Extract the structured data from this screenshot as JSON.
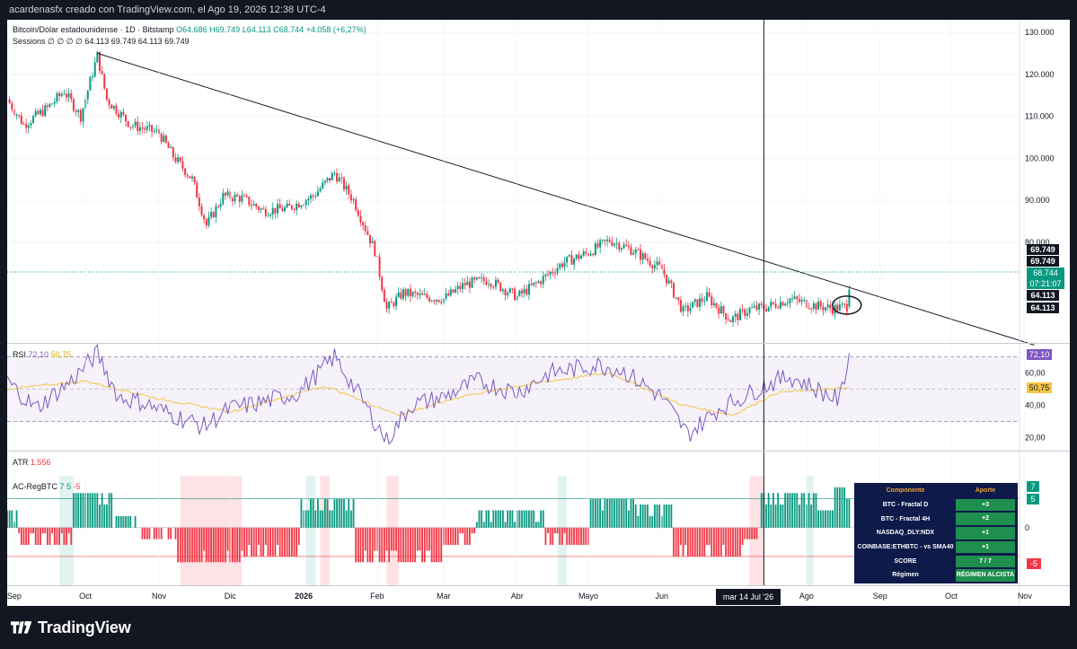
{
  "header": {
    "caption": "acardenasfx creado con TradingView.com, el Ago 19, 2026 12:38 UTC-4"
  },
  "main_pane": {
    "symbol_title": "Bitcoin/Dólar estadounidense · 1D · Bitstamp",
    "ohlc": {
      "open": "O64.686",
      "high": "H69.749",
      "low": "L64.113",
      "close": "C68.744",
      "change": "+4.058 (+6,27%)"
    },
    "sessions_legend": "Sessions  ∅  ∅  ∅  ∅  64.113  69.749  64.113  69.749",
    "price_ticks": [
      "130.000",
      "120.000",
      "110.000",
      "100.000",
      "90.000",
      "80.000"
    ],
    "price_labels": {
      "high_1": "69.749",
      "high_2": "69.749",
      "last": "68.744",
      "countdown": "07:21:07",
      "low_1": "64.113",
      "low_2": "64.113"
    }
  },
  "rsi_pane": {
    "legend_name": "RSI",
    "legend_rsi": "72,10",
    "legend_ma": "50,75",
    "ticks": [
      "60,00",
      "40,00",
      "20,00"
    ],
    "label_rsi": "72,10",
    "label_ma": "50,75"
  },
  "atr_pane": {
    "legend_name": "ATR",
    "legend_value": "1.556"
  },
  "reg_pane": {
    "legend_name": "AC-RegBTC",
    "legend_v1": "7",
    "legend_v2": "5",
    "legend_v3": "-5",
    "ticks": [
      "0"
    ],
    "label_7": "7",
    "label_5": "5",
    "label_m5": "-5",
    "table": {
      "header_col1": "Componente",
      "header_col2": "Aporte",
      "rows": [
        {
          "name": "BTC - Fractal D",
          "value": "+3"
        },
        {
          "name": "BTC - Fractal 4H",
          "value": "+2"
        },
        {
          "name": "NASDAQ_DLY:NDX",
          "value": "+1"
        },
        {
          "name": "COINBASE:ETHBTC - vs SMA40",
          "value": "+1"
        },
        {
          "name": "SCORE",
          "value": "7 / 7"
        },
        {
          "name": "Régimen",
          "value": "RÉGIMEN ALCISTA"
        }
      ]
    }
  },
  "time_axis": {
    "labels": [
      "Sep",
      "Oct",
      "Nov",
      "Dic",
      "2026",
      "Feb",
      "Mar",
      "Abr",
      "Mayo",
      "Jun",
      "Ago",
      "Sep",
      "Oct",
      "Nov"
    ],
    "crosshair_label": "mar 14 Jul '26"
  },
  "footer": {
    "brand": "TradingView"
  },
  "colors": {
    "up": "#089981",
    "down": "#f23645",
    "rsi_line": "#7e57c2",
    "rsi_ma": "#f5c542",
    "rsi_band": "#ede7f6",
    "trendline": "#131722",
    "dark_label": "#131722",
    "table_bg": "#0d1a4a",
    "table_value_bg": "#1e8f4e",
    "table_header_text": "#f0a030"
  },
  "chart_data": {
    "type": "candlestick",
    "title": "Bitcoin/Dólar estadounidense · 1D · Bitstamp",
    "x_range": [
      "2025-08-29",
      "2026-11-20"
    ],
    "ylim": [
      56000,
      133000
    ],
    "y_ticks": [
      80000,
      90000,
      100000,
      110000,
      120000,
      130000
    ],
    "close_path": [
      [
        "2025-08-29",
        114000
      ],
      [
        "2025-09-05",
        108000
      ],
      [
        "2025-09-15",
        112000
      ],
      [
        "2025-09-22",
        116000
      ],
      [
        "2025-09-29",
        110000
      ],
      [
        "2025-10-06",
        124500
      ],
      [
        "2025-10-10",
        114000
      ],
      [
        "2025-10-20",
        108000
      ],
      [
        "2025-11-01",
        106000
      ],
      [
        "2025-11-07",
        100500
      ],
      [
        "2025-11-15",
        95000
      ],
      [
        "2025-11-21",
        84000
      ],
      [
        "2025-11-28",
        91000
      ],
      [
        "2025-12-06",
        90500
      ],
      [
        "2025-12-15",
        87500
      ],
      [
        "2025-12-25",
        88000
      ],
      [
        "2026-01-05",
        91000
      ],
      [
        "2026-01-14",
        96500
      ],
      [
        "2026-01-22",
        90000
      ],
      [
        "2026-01-31",
        78000
      ],
      [
        "2026-02-05",
        64000
      ],
      [
        "2026-02-12",
        68000
      ],
      [
        "2026-02-20",
        67000
      ],
      [
        "2026-03-01",
        66500
      ],
      [
        "2026-03-10",
        70000
      ],
      [
        "2026-03-20",
        71000
      ],
      [
        "2026-04-01",
        67000
      ],
      [
        "2026-04-10",
        70500
      ],
      [
        "2026-04-20",
        75000
      ],
      [
        "2026-05-01",
        77500
      ],
      [
        "2026-05-10",
        80500
      ],
      [
        "2026-05-20",
        78000
      ],
      [
        "2026-06-01",
        73500
      ],
      [
        "2026-06-10",
        63500
      ],
      [
        "2026-06-20",
        67000
      ],
      [
        "2026-06-30",
        61500
      ],
      [
        "2026-07-08",
        64000
      ],
      [
        "2026-07-15",
        64500
      ],
      [
        "2026-07-25",
        66500
      ],
      [
        "2026-08-04",
        65000
      ],
      [
        "2026-08-12",
        64200
      ],
      [
        "2026-08-18",
        64686
      ],
      [
        "2026-08-19",
        68744
      ]
    ],
    "last_candle": {
      "date": "2026-08-19",
      "open": 64686,
      "high": 69749,
      "low": 64113,
      "close": 68744,
      "change": 4058,
      "change_pct": 6.27
    },
    "trendline": [
      [
        "2025-10-06",
        125000
      ],
      [
        "2026-11-05",
        55500
      ]
    ],
    "annotation_ellipse": {
      "date": "2026-08-18",
      "price": 65000
    },
    "crosshair_date": "2026-07-14",
    "rsi": {
      "ylim": [
        12,
        78
      ],
      "levels": [
        70,
        50,
        30
      ],
      "last": 72.1,
      "ma_last": 50.75,
      "path": [
        [
          "2025-08-29",
          55
        ],
        [
          "2025-09-10",
          38
        ],
        [
          "2025-09-25",
          55
        ],
        [
          "2025-10-06",
          72
        ],
        [
          "2025-10-15",
          45
        ],
        [
          "2025-10-25",
          42
        ],
        [
          "2025-11-05",
          35
        ],
        [
          "2025-11-20",
          27
        ],
        [
          "2025-12-01",
          38
        ],
        [
          "2025-12-15",
          42
        ],
        [
          "2025-12-30",
          48
        ],
        [
          "2026-01-14",
          70
        ],
        [
          "2026-01-25",
          45
        ],
        [
          "2026-02-05",
          18
        ],
        [
          "2026-02-15",
          40
        ],
        [
          "2026-03-01",
          45
        ],
        [
          "2026-03-15",
          55
        ],
        [
          "2026-04-01",
          48
        ],
        [
          "2026-04-15",
          60
        ],
        [
          "2026-05-05",
          65
        ],
        [
          "2026-05-15",
          62
        ],
        [
          "2026-06-01",
          45
        ],
        [
          "2026-06-12",
          22
        ],
        [
          "2026-06-25",
          38
        ],
        [
          "2026-07-05",
          45
        ],
        [
          "2026-07-14",
          52
        ],
        [
          "2026-07-25",
          58
        ],
        [
          "2026-08-05",
          50
        ],
        [
          "2026-08-15",
          43
        ],
        [
          "2026-08-19",
          72.1
        ]
      ],
      "ma_path": [
        [
          "2025-08-29",
          50
        ],
        [
          "2025-10-01",
          55
        ],
        [
          "2025-11-01",
          44
        ],
        [
          "2025-12-01",
          36
        ],
        [
          "2026-01-10",
          52
        ],
        [
          "2026-02-10",
          34
        ],
        [
          "2026-03-10",
          46
        ],
        [
          "2026-04-10",
          54
        ],
        [
          "2026-05-10",
          60
        ],
        [
          "2026-06-10",
          40
        ],
        [
          "2026-07-01",
          34
        ],
        [
          "2026-07-20",
          48
        ],
        [
          "2026-08-19",
          50.75
        ]
      ]
    },
    "regime": {
      "ylim": [
        -10,
        9
      ],
      "levels": [
        5,
        0,
        -5
      ],
      "segments": [
        [
          "2025-08-29",
          "2025-09-02",
          3
        ],
        [
          "2025-09-03",
          "2025-09-25",
          -3
        ],
        [
          "2025-09-26",
          "2025-10-12",
          6
        ],
        [
          "2025-10-13",
          "2025-10-22",
          2
        ],
        [
          "2025-10-23",
          "2025-11-08",
          -2
        ],
        [
          "2025-11-09",
          "2025-12-06",
          -6
        ],
        [
          "2025-12-07",
          "2025-12-30",
          -5
        ],
        [
          "2025-12-31",
          "2026-01-22",
          5
        ],
        [
          "2026-01-23",
          "2026-02-28",
          -6
        ],
        [
          "2026-03-01",
          "2026-03-14",
          -3
        ],
        [
          "2026-03-15",
          "2026-04-12",
          3
        ],
        [
          "2026-04-13",
          "2026-05-01",
          -3
        ],
        [
          "2026-05-02",
          "2026-05-20",
          5
        ],
        [
          "2026-05-21",
          "2026-06-05",
          4
        ],
        [
          "2026-06-06",
          "2026-07-05",
          -5
        ],
        [
          "2026-07-06",
          "2026-07-12",
          -2
        ],
        [
          "2026-07-13",
          "2026-08-05",
          6
        ],
        [
          "2026-08-06",
          "2026-08-12",
          3
        ],
        [
          "2026-08-13",
          "2026-08-19",
          7
        ]
      ],
      "bearish_shading": [
        [
          "2025-11-10",
          "2025-12-06"
        ],
        [
          "2026-01-08",
          "2026-01-12"
        ],
        [
          "2026-02-05",
          "2026-02-10"
        ],
        [
          "2026-07-08",
          "2026-07-14"
        ]
      ],
      "bullish_shading": [
        [
          "2025-09-20",
          "2025-09-26"
        ],
        [
          "2026-01-02",
          "2026-01-06"
        ],
        [
          "2026-04-18",
          "2026-04-22"
        ],
        [
          "2026-08-01",
          "2026-08-04"
        ]
      ]
    }
  }
}
